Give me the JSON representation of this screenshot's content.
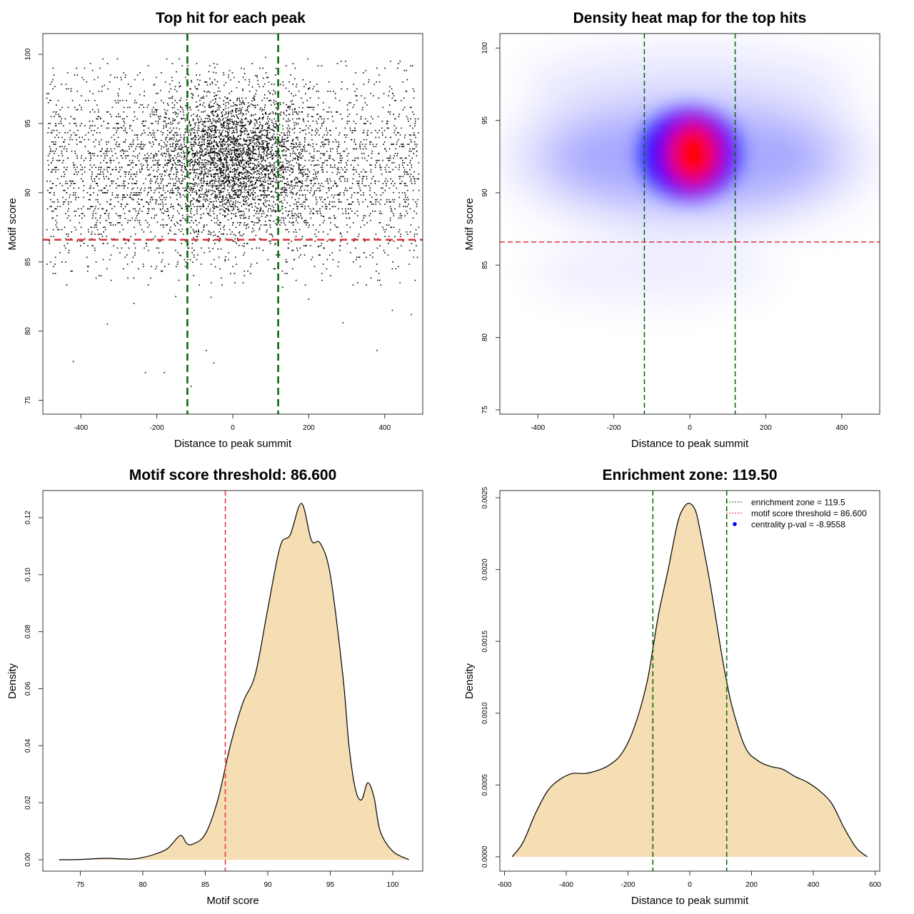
{
  "chart_data": [
    {
      "type": "scatter",
      "title": "Top hit for each peak",
      "xlabel": "Distance to peak summit",
      "ylabel": "Motif score",
      "xlim": [
        -500,
        500
      ],
      "ylim": [
        74,
        101.5
      ],
      "xticks": [
        "-400",
        "-200",
        "0",
        "200",
        "400"
      ],
      "yticks": [
        "75",
        "80",
        "85",
        "90",
        "95",
        "100"
      ],
      "vlines": [
        -119.5,
        119.5
      ],
      "hline": 86.6,
      "colors": {
        "points": "#000000",
        "vlines": "#006400",
        "hline": "#e0303a"
      },
      "points_description_free": {
        "n_points_approx": 6000,
        "center_x": 0,
        "center_y": 92.5,
        "core_x_sd": 100,
        "core_y_sd": 2.5,
        "background_x_range": [
          -490,
          490
        ],
        "background_y_range": [
          84,
          99.7
        ]
      }
    },
    {
      "type": "heatmap",
      "title": "Density heat map for the top hits",
      "xlabel": "Distance to peak summit",
      "ylabel": "Motif score",
      "xlim": [
        -500,
        500
      ],
      "ylim": [
        74.7,
        101
      ],
      "xticks": [
        "-400",
        "-200",
        "0",
        "200",
        "400"
      ],
      "yticks": [
        "75",
        "80",
        "85",
        "90",
        "95",
        "100"
      ],
      "vlines": [
        -119.5,
        119.5
      ],
      "hline": 86.6,
      "peak": {
        "x": 10,
        "y": 92.7
      },
      "colors": {
        "low": "#ffffff",
        "mid": "#0000ff",
        "high": "#ff0000",
        "vlines": "#006400",
        "hline": "#e0303a"
      }
    },
    {
      "type": "area",
      "title": "Motif score threshold: 86.600",
      "xlabel": "Motif score",
      "ylabel": "Density",
      "xlim": [
        72,
        102.4
      ],
      "ylim": [
        -0.004,
        0.1295
      ],
      "xticks": [
        "75",
        "80",
        "85",
        "90",
        "95",
        "100"
      ],
      "yticks": [
        "0.00",
        "0.02",
        "0.04",
        "0.06",
        "0.08",
        "0.10",
        "0.12"
      ],
      "vline": 86.6,
      "x": [
        73.3,
        75,
        77,
        79,
        80,
        81,
        82,
        83,
        83.5,
        84,
        85,
        86,
        87,
        88,
        89,
        90,
        91,
        91.8,
        92.7,
        93.5,
        94.2,
        95,
        96,
        96.5,
        97,
        97.5,
        98,
        98.5,
        99,
        100,
        101.3
      ],
      "y": [
        0.0,
        0.0001,
        0.0005,
        0.0002,
        0.0008,
        0.002,
        0.004,
        0.0085,
        0.0058,
        0.0055,
        0.009,
        0.021,
        0.04,
        0.055,
        0.065,
        0.088,
        0.11,
        0.114,
        0.125,
        0.112,
        0.111,
        0.1,
        0.065,
        0.04,
        0.025,
        0.021,
        0.027,
        0.022,
        0.01,
        0.003,
        0.0
      ],
      "colors": {
        "fill": "#f5deb3",
        "line": "#000000",
        "vline": "#e0303a"
      }
    },
    {
      "type": "area",
      "title": "Enrichment zone: 119.50",
      "xlabel": "Distance to peak summit",
      "ylabel": "Density",
      "xlim": [
        -615,
        615
      ],
      "ylim": [
        -0.0001,
        0.00255
      ],
      "xticks": [
        "-600",
        "-400",
        "-200",
        "0",
        "200",
        "400",
        "600"
      ],
      "yticks": [
        "0.0000",
        "0.0005",
        "0.0010",
        "0.0015",
        "0.0020",
        "0.0025"
      ],
      "vlines": [
        -119.5,
        119.5
      ],
      "x": [
        -575,
        -540,
        -500,
        -460,
        -420,
        -380,
        -340,
        -300,
        -260,
        -220,
        -180,
        -140,
        -119.5,
        -100,
        -70,
        -40,
        -20,
        0,
        20,
        40,
        70,
        100,
        119.5,
        140,
        180,
        220,
        260,
        300,
        340,
        380,
        420,
        460,
        500,
        540,
        575
      ],
      "y": [
        0.0,
        0.0001,
        0.0003,
        0.00046,
        0.00054,
        0.00058,
        0.00058,
        0.0006,
        0.00064,
        0.00072,
        0.0009,
        0.0012,
        0.00145,
        0.0017,
        0.002,
        0.00232,
        0.00243,
        0.00246,
        0.0024,
        0.0022,
        0.00185,
        0.00145,
        0.00122,
        0.00102,
        0.00076,
        0.00067,
        0.00063,
        0.00061,
        0.00056,
        0.00052,
        0.00046,
        0.00037,
        0.0002,
        6e-05,
        0.0
      ],
      "legend": [
        {
          "label": "enrichment zone = 119.5",
          "kind": "dotted-line",
          "color": "#006400"
        },
        {
          "label": "motif score threshold = 86.600",
          "kind": "dotted-line",
          "color": "#e0303a"
        },
        {
          "label": "centrality p-val = -8.9558",
          "kind": "dot",
          "color": "#0000ff"
        }
      ],
      "legend_position": "top-right",
      "colors": {
        "fill": "#f5deb3",
        "line": "#000000",
        "vlines": "#006400"
      }
    }
  ]
}
